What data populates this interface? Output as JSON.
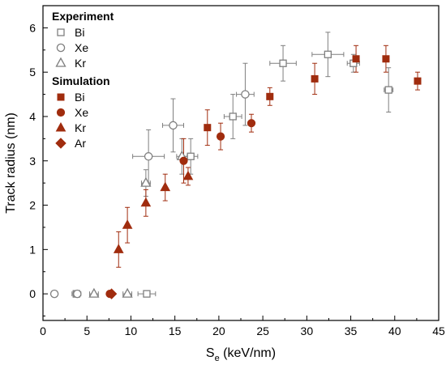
{
  "chart_data": {
    "type": "scatter",
    "xlabel": {
      "main": "S",
      "sub": "e",
      "rest": " (keV/nm)"
    },
    "ylabel": "Track radius (nm)",
    "xlim": [
      0,
      45
    ],
    "ylim": [
      -0.6,
      6.5
    ],
    "xticks": [
      0,
      5,
      10,
      15,
      20,
      25,
      30,
      35,
      40,
      45
    ],
    "yticks": [
      0,
      1,
      2,
      3,
      4,
      5,
      6
    ],
    "legend": {
      "position": "top-left",
      "groups": [
        {
          "title": "Experiment",
          "entries": [
            "Bi",
            "Xe",
            "Kr"
          ]
        },
        {
          "title": "Simulation",
          "entries": [
            "Bi",
            "Xe",
            "Kr",
            "Ar"
          ]
        }
      ]
    },
    "colors": {
      "experiment": "#7f7f7f",
      "simulation": "#a02c0e"
    },
    "series": [
      {
        "name": "Bi",
        "group": "Experiment",
        "marker": "square",
        "fill": "open",
        "points": [
          {
            "x": 3.8,
            "y": 0,
            "xerr": 0.5,
            "yerr": 0
          },
          {
            "x": 11.8,
            "y": 0,
            "xerr": 1.0,
            "yerr": 0
          },
          {
            "x": 16.8,
            "y": 3.1,
            "xerr": 0.8,
            "yerr": 0.4
          },
          {
            "x": 21.6,
            "y": 4.0,
            "xerr": 1.0,
            "yerr": 0.5
          },
          {
            "x": 27.3,
            "y": 5.2,
            "xerr": 1.5,
            "yerr": 0.4
          },
          {
            "x": 32.4,
            "y": 5.4,
            "xerr": 1.8,
            "yerr": 0.5
          },
          {
            "x": 35.3,
            "y": 5.2,
            "xerr": 0.7,
            "yerr": 0.2
          },
          {
            "x": 39.3,
            "y": 4.6,
            "xerr": 0.5,
            "yerr": 0.5
          }
        ]
      },
      {
        "name": "Xe",
        "group": "Experiment",
        "marker": "circle",
        "fill": "open",
        "points": [
          {
            "x": 1.3,
            "y": 0,
            "xerr": 0.3,
            "yerr": 0
          },
          {
            "x": 3.9,
            "y": 0,
            "xerr": 0.4,
            "yerr": 0
          },
          {
            "x": 12.0,
            "y": 3.1,
            "xerr": 1.8,
            "yerr": 0.6
          },
          {
            "x": 14.8,
            "y": 3.8,
            "xerr": 1.2,
            "yerr": 0.6
          },
          {
            "x": 23.0,
            "y": 4.5,
            "xerr": 1.0,
            "yerr": 0.7
          }
        ]
      },
      {
        "name": "Kr",
        "group": "Experiment",
        "marker": "triangle",
        "fill": "open",
        "points": [
          {
            "x": 5.8,
            "y": 0,
            "xerr": 0.5,
            "yerr": 0
          },
          {
            "x": 9.6,
            "y": 0,
            "xerr": 0.5,
            "yerr": 0
          },
          {
            "x": 11.7,
            "y": 2.5,
            "xerr": 0.5,
            "yerr": 0.3
          },
          {
            "x": 15.8,
            "y": 3.1,
            "xerr": 0.6,
            "yerr": 0.4
          }
        ]
      },
      {
        "name": "Bi",
        "group": "Simulation",
        "marker": "square",
        "fill": "filled",
        "points": [
          {
            "x": 18.7,
            "y": 3.75,
            "xerr": 0,
            "yerr": 0.4
          },
          {
            "x": 25.8,
            "y": 4.45,
            "xerr": 0,
            "yerr": 0.2
          },
          {
            "x": 30.9,
            "y": 4.85,
            "xerr": 0,
            "yerr": 0.35
          },
          {
            "x": 35.6,
            "y": 5.3,
            "xerr": 0,
            "yerr": 0.3
          },
          {
            "x": 39.0,
            "y": 5.3,
            "xerr": 0,
            "yerr": 0.3
          },
          {
            "x": 42.6,
            "y": 4.8,
            "xerr": 0,
            "yerr": 0.2
          }
        ]
      },
      {
        "name": "Xe",
        "group": "Simulation",
        "marker": "circle",
        "fill": "filled",
        "points": [
          {
            "x": 7.6,
            "y": 0,
            "xerr": 0,
            "yerr": 0
          },
          {
            "x": 16.0,
            "y": 3.0,
            "xerr": 0,
            "yerr": 0.5
          },
          {
            "x": 20.2,
            "y": 3.55,
            "xerr": 0,
            "yerr": 0.3
          },
          {
            "x": 23.7,
            "y": 3.85,
            "xerr": 0,
            "yerr": 0.2
          }
        ]
      },
      {
        "name": "Kr",
        "group": "Simulation",
        "marker": "triangle",
        "fill": "filled",
        "points": [
          {
            "x": 8.6,
            "y": 1.0,
            "xerr": 0,
            "yerr": 0.4
          },
          {
            "x": 9.6,
            "y": 1.55,
            "xerr": 0,
            "yerr": 0.4
          },
          {
            "x": 11.7,
            "y": 2.05,
            "xerr": 0,
            "yerr": 0.3
          },
          {
            "x": 13.9,
            "y": 2.4,
            "xerr": 0,
            "yerr": 0.3
          },
          {
            "x": 16.5,
            "y": 2.65,
            "xerr": 0,
            "yerr": 0.2
          }
        ]
      },
      {
        "name": "Ar",
        "group": "Simulation",
        "marker": "diamond",
        "fill": "filled",
        "points": [
          {
            "x": 7.8,
            "y": 0,
            "xerr": 0,
            "yerr": 0
          }
        ]
      }
    ]
  }
}
